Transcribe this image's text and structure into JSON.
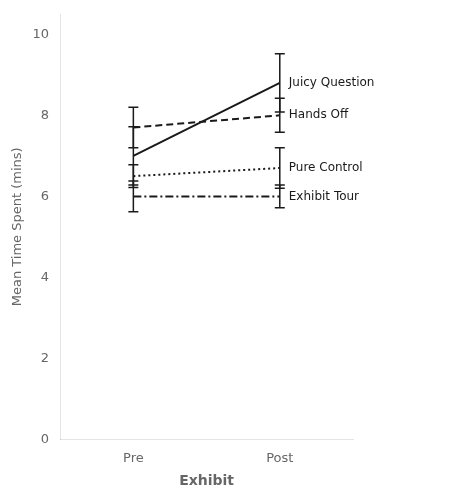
{
  "chart_data": {
    "type": "line",
    "xlabel": "Exhibit",
    "ylabel": "Mean Time Spent (mins)",
    "categories": [
      "Pre",
      "Post"
    ],
    "series": [
      {
        "name": "Juicy Question",
        "color": "#1a1a1a",
        "values": [
          7.0,
          8.8
        ],
        "errors": [
          0.72,
          0.72
        ],
        "line_style": "solid"
      },
      {
        "name": "Hands Off",
        "color": "#1a1a1a",
        "values": [
          7.7,
          8.0
        ],
        "errors": [
          0.5,
          0.42
        ],
        "line_style": "dashed"
      },
      {
        "name": "Pure Control",
        "color": "#1a1a1a",
        "values": [
          6.5,
          6.7
        ],
        "errors": [
          0.28,
          0.5
        ],
        "line_style": "dotted"
      },
      {
        "name": "Exhibit Tour",
        "color": "#1a1a1a",
        "values": [
          6.0,
          6.0
        ],
        "errors": [
          0.38,
          0.28
        ],
        "line_style": "dashdot"
      }
    ],
    "ylim": [
      0,
      10.5
    ],
    "yticks": [
      0,
      2,
      4,
      6,
      8,
      10
    ],
    "grid": false
  }
}
